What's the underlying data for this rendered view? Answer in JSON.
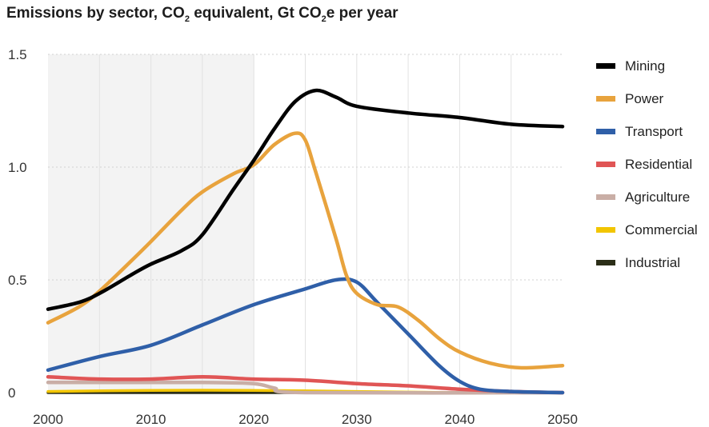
{
  "chart_data": {
    "type": "line",
    "title_main": "Emissions by sector, CO",
    "title_sub": "2",
    "title_mid": " equivalent, Gt CO",
    "title_sub2": "2",
    "title_end": "e per year",
    "xlabel": "",
    "ylabel": "",
    "xlim": [
      2000,
      2050
    ],
    "ylim": [
      0,
      1.5
    ],
    "x_ticks": [
      "2000",
      "2010",
      "2020",
      "2030",
      "2040",
      "2050"
    ],
    "y_ticks": [
      "0",
      "0.5",
      "1.0",
      "1.5"
    ],
    "grid": true,
    "shaded_region": [
      2000,
      2020
    ],
    "legend_position": "right",
    "series": [
      {
        "name": "Mining",
        "color": "#000000",
        "points": [
          [
            2000,
            0.37
          ],
          [
            2003,
            0.4
          ],
          [
            2005,
            0.44
          ],
          [
            2008,
            0.52
          ],
          [
            2010,
            0.57
          ],
          [
            2013,
            0.63
          ],
          [
            2015,
            0.7
          ],
          [
            2018,
            0.9
          ],
          [
            2020,
            1.03
          ],
          [
            2022,
            1.17
          ],
          [
            2024,
            1.29
          ],
          [
            2026,
            1.34
          ],
          [
            2028,
            1.31
          ],
          [
            2030,
            1.27
          ],
          [
            2035,
            1.24
          ],
          [
            2040,
            1.22
          ],
          [
            2045,
            1.19
          ],
          [
            2050,
            1.18
          ]
        ]
      },
      {
        "name": "Power",
        "color": "#E8A33D",
        "points": [
          [
            2000,
            0.31
          ],
          [
            2003,
            0.38
          ],
          [
            2005,
            0.45
          ],
          [
            2008,
            0.58
          ],
          [
            2010,
            0.67
          ],
          [
            2013,
            0.81
          ],
          [
            2015,
            0.89
          ],
          [
            2018,
            0.97
          ],
          [
            2020,
            1.01
          ],
          [
            2022,
            1.1
          ],
          [
            2024,
            1.15
          ],
          [
            2025,
            1.12
          ],
          [
            2026,
            0.98
          ],
          [
            2028,
            0.68
          ],
          [
            2029,
            0.52
          ],
          [
            2030,
            0.44
          ],
          [
            2032,
            0.39
          ],
          [
            2034,
            0.38
          ],
          [
            2036,
            0.32
          ],
          [
            2038,
            0.24
          ],
          [
            2040,
            0.18
          ],
          [
            2043,
            0.13
          ],
          [
            2046,
            0.11
          ],
          [
            2050,
            0.12
          ]
        ]
      },
      {
        "name": "Transport",
        "color": "#2F5FA8",
        "points": [
          [
            2000,
            0.1
          ],
          [
            2005,
            0.16
          ],
          [
            2010,
            0.21
          ],
          [
            2015,
            0.3
          ],
          [
            2020,
            0.39
          ],
          [
            2025,
            0.46
          ],
          [
            2028,
            0.5
          ],
          [
            2030,
            0.49
          ],
          [
            2032,
            0.4
          ],
          [
            2035,
            0.26
          ],
          [
            2038,
            0.12
          ],
          [
            2040,
            0.05
          ],
          [
            2042,
            0.015
          ],
          [
            2045,
            0.005
          ],
          [
            2050,
            0.0
          ]
        ]
      },
      {
        "name": "Residential",
        "color": "#E05555",
        "points": [
          [
            2000,
            0.07
          ],
          [
            2005,
            0.06
          ],
          [
            2010,
            0.06
          ],
          [
            2015,
            0.07
          ],
          [
            2020,
            0.06
          ],
          [
            2025,
            0.055
          ],
          [
            2030,
            0.04
          ],
          [
            2035,
            0.03
          ],
          [
            2040,
            0.015
          ],
          [
            2045,
            0.005
          ],
          [
            2050,
            0.0
          ]
        ]
      },
      {
        "name": "Agriculture",
        "color": "#C9AEA6",
        "points": [
          [
            2000,
            0.045
          ],
          [
            2005,
            0.045
          ],
          [
            2010,
            0.045
          ],
          [
            2015,
            0.045
          ],
          [
            2020,
            0.04
          ],
          [
            2022,
            0.02
          ],
          [
            2025,
            0.0
          ],
          [
            2050,
            0.0
          ]
        ]
      },
      {
        "name": "Commercial",
        "color": "#F2C500",
        "points": [
          [
            2000,
            0.005
          ],
          [
            2010,
            0.01
          ],
          [
            2020,
            0.01
          ],
          [
            2030,
            0.005
          ],
          [
            2040,
            0.0
          ],
          [
            2050,
            0.0
          ]
        ]
      },
      {
        "name": "Industrial",
        "color": "#2B2E18",
        "points": [
          [
            2000,
            0.0
          ],
          [
            2050,
            0.0
          ]
        ]
      }
    ]
  }
}
